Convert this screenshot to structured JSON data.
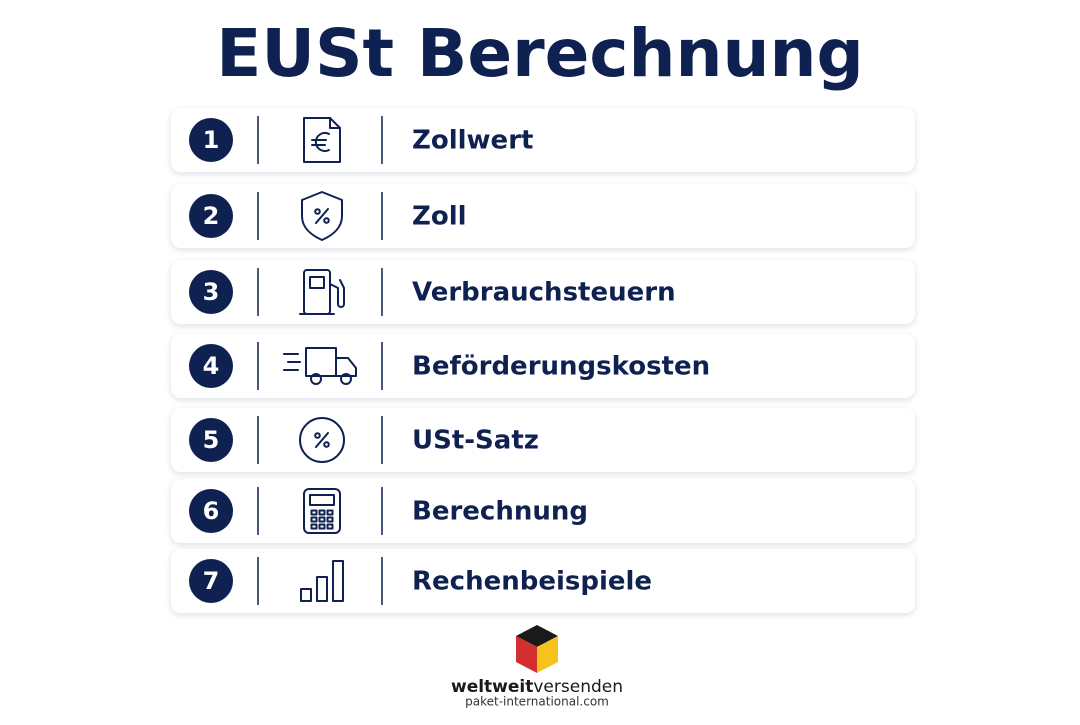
{
  "header": {
    "title": "EUSt Berechnung"
  },
  "items": [
    {
      "number": 1,
      "label": "Zollwert"
    },
    {
      "number": 2,
      "label": "Zoll"
    },
    {
      "number": 3,
      "label": "Verbrauchsteuern"
    },
    {
      "number": 4,
      "label": "Beförderungskosten"
    },
    {
      "number": 5,
      "label": "USt-Satz"
    },
    {
      "number": 6,
      "label": "Berechnung"
    },
    {
      "number": 7,
      "label": "Rechenbeispiele"
    }
  ],
  "logo": {
    "brand_bold": "weltweit",
    "brand_light": "versenden",
    "url": "paket-international.com"
  }
}
